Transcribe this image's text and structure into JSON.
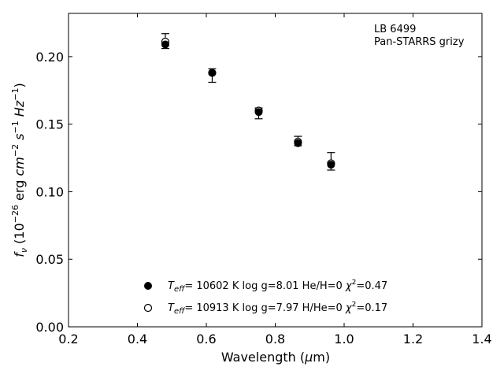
{
  "chart_data": {
    "type": "scatter",
    "title": "",
    "xlabel_prefix": "Wavelength (",
    "xlabel_mu": "μ",
    "xlabel_suffix": "m)",
    "ylabel": {
      "f": "f",
      "nu": "ν",
      "open": " (10",
      "exp_m26": "−26",
      "erg": " erg ",
      "cm": "cm",
      "exp_m2": "−2",
      "s": " s",
      "exp_m1": "−1",
      "Hz": " Hz",
      "exp_m1b": "−1",
      "close": ")"
    },
    "xlim": [
      0.2,
      1.4
    ],
    "ylim": [
      0.0,
      0.232
    ],
    "x_ticks": [
      "0.2",
      "0.4",
      "0.6",
      "0.8",
      "1.0",
      "1.2",
      "1.4"
    ],
    "x_tick_values": [
      0.2,
      0.4,
      0.6,
      0.8,
      1.0,
      1.2,
      1.4
    ],
    "y_ticks": [
      "0.00",
      "0.05",
      "0.10",
      "0.15",
      "0.20"
    ],
    "y_tick_values": [
      0.0,
      0.05,
      0.1,
      0.15,
      0.2
    ],
    "grid": false,
    "annotation": [
      "LB 6499",
      "Pan-STARRS grizy"
    ],
    "observed": {
      "x": [
        0.481,
        0.617,
        0.752,
        0.866,
        0.962
      ],
      "y": [
        0.21,
        0.186,
        0.158,
        0.137,
        0.122
      ],
      "yerr_low": [
        0.004,
        0.005,
        0.004,
        0.003,
        0.006
      ],
      "yerr_high": [
        0.007,
        0.005,
        0.004,
        0.004,
        0.007
      ]
    },
    "series": [
      {
        "marker": "filled",
        "label_T": "T",
        "label_eff": "eff",
        "label_main": "= 10602 K  log g=8.01  He/H=0  ",
        "label_chi": "χ",
        "label_chi_exp": "2",
        "label_chi_val": "=0.47",
        "x": [
          0.481,
          0.617,
          0.752,
          0.866,
          0.962
        ],
        "y": [
          0.209,
          0.188,
          0.159,
          0.136,
          0.12
        ]
      },
      {
        "marker": "open",
        "label_T": "T",
        "label_eff": "eff",
        "label_main": "= 10913 K  log g=7.97  H/He=0  ",
        "label_chi": "χ",
        "label_chi_exp": "2",
        "label_chi_val": "=0.17",
        "x": [
          0.481,
          0.617,
          0.752,
          0.866,
          0.962
        ],
        "y": [
          0.211,
          0.188,
          0.16,
          0.137,
          0.121
        ]
      }
    ],
    "legend_position": "lower-center"
  }
}
